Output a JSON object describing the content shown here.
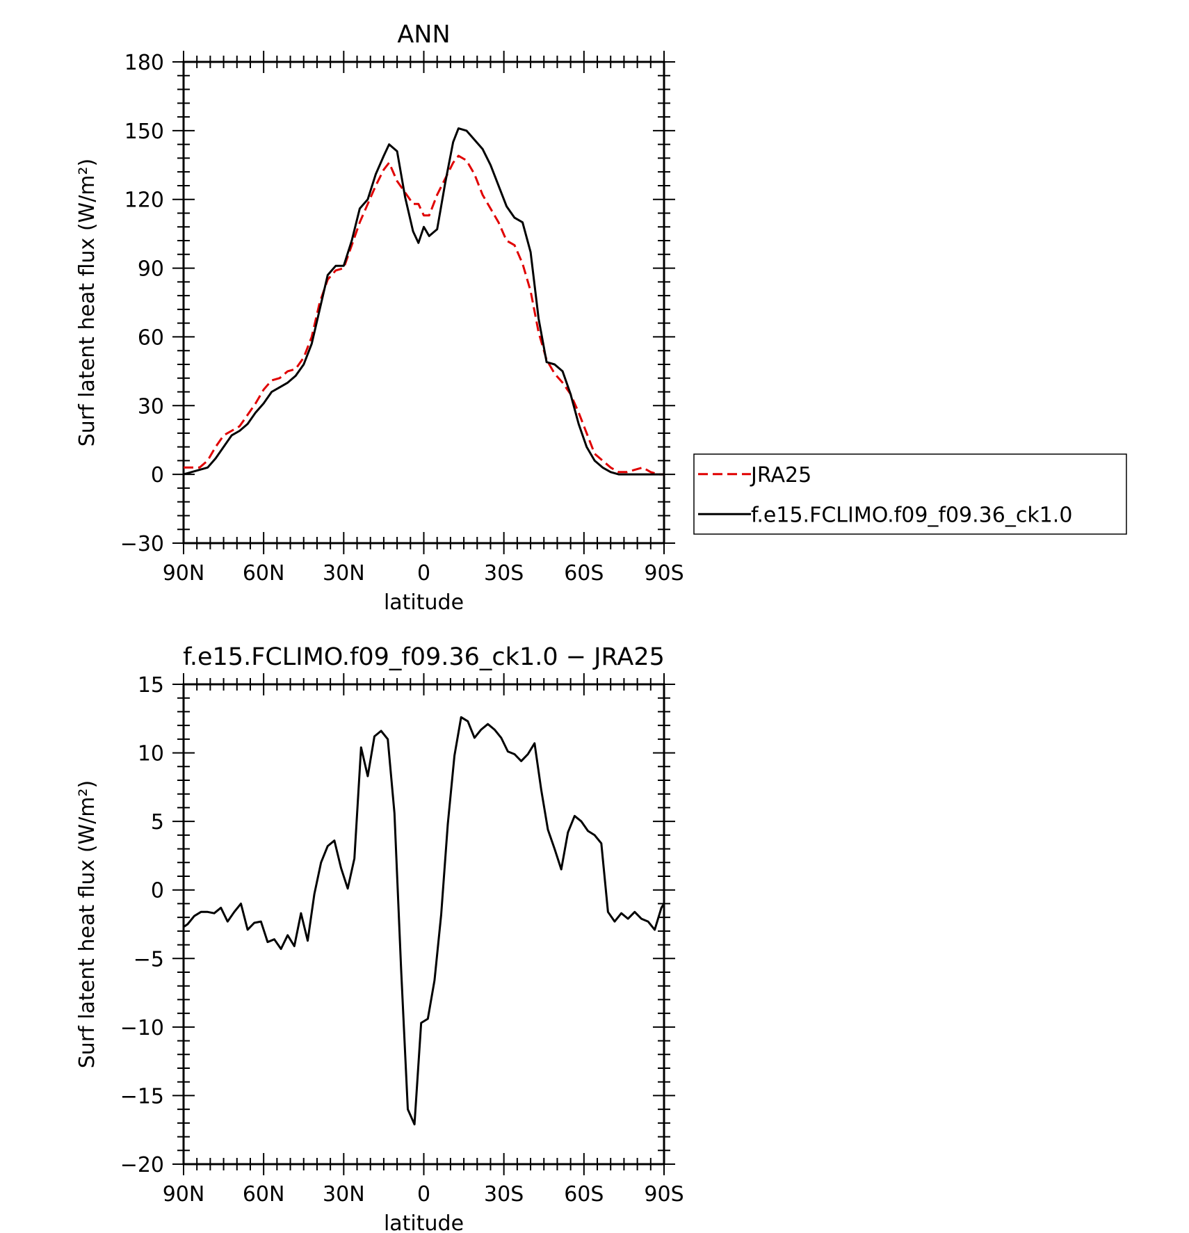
{
  "chart_data": [
    {
      "type": "line",
      "title": "ANN",
      "xlabel": "latitude",
      "ylabel": "Surf latent heat flux (W/m²)",
      "xlim": [
        90,
        -90
      ],
      "ylim": [
        -30,
        180
      ],
      "x_ticks": [
        90,
        60,
        30,
        0,
        -30,
        -60,
        -90
      ],
      "x_tick_labels": [
        "90N",
        "60N",
        "30N",
        "0",
        "30S",
        "60S",
        "90S"
      ],
      "y_ticks": [
        -30,
        0,
        30,
        60,
        90,
        120,
        150,
        180
      ],
      "y_tick_labels": [
        "−30",
        "0",
        "30",
        "60",
        "90",
        "120",
        "150",
        "180"
      ],
      "legend_position": "right",
      "series": [
        {
          "name": "JRA25",
          "color": "#e00000",
          "style": "dashed",
          "x": [
            90,
            87,
            84,
            81,
            78,
            75,
            72,
            69,
            66,
            63,
            60,
            57,
            54,
            51,
            48,
            45,
            42,
            39,
            36,
            33,
            30,
            27,
            24,
            21,
            18,
            15,
            13,
            10,
            7,
            4,
            2,
            0,
            -2,
            -5,
            -8,
            -11,
            -13,
            -16,
            -19,
            -22,
            -25,
            -28,
            -31,
            -34,
            -37,
            -40,
            -43,
            -46,
            -49,
            -52,
            -55,
            -58,
            -61,
            -64,
            -67,
            -70,
            -73,
            -76,
            -79,
            -82,
            -85,
            -88,
            -90
          ],
          "y": [
            3,
            3,
            3,
            6,
            12,
            17,
            19,
            21,
            26,
            31,
            37,
            41,
            42,
            45,
            46,
            51,
            60,
            75,
            85,
            89,
            90,
            100,
            110,
            118,
            126,
            133,
            136,
            128,
            123,
            118,
            118,
            113,
            113,
            122,
            129,
            136,
            139,
            137,
            131,
            122,
            116,
            110,
            102,
            100,
            92,
            80,
            62,
            50,
            44,
            40,
            35,
            27,
            18,
            9,
            6,
            3,
            1,
            1,
            2,
            3,
            1,
            0,
            0
          ]
        },
        {
          "name": "f.e15.FCLIMO.f09_f09.36_ck1.0",
          "color": "#000000",
          "style": "solid",
          "x": [
            90,
            87,
            84,
            81,
            78,
            75,
            72,
            69,
            66,
            63,
            60,
            57,
            54,
            51,
            48,
            45,
            42,
            39,
            36,
            33,
            30,
            27,
            24,
            21,
            18,
            15,
            13,
            10,
            7,
            4,
            2,
            0,
            -2,
            -5,
            -8,
            -11,
            -13,
            -16,
            -19,
            -22,
            -25,
            -28,
            -31,
            -34,
            -37,
            -40,
            -43,
            -46,
            -49,
            -52,
            -55,
            -58,
            -61,
            -64,
            -67,
            -70,
            -73,
            -76,
            -79,
            -82,
            -85,
            -88,
            -90
          ],
          "y": [
            0,
            1,
            2,
            3,
            7,
            12,
            17,
            19,
            22,
            27,
            31,
            36,
            38,
            40,
            43,
            48,
            57,
            72,
            87,
            91,
            91,
            102,
            116,
            120,
            131,
            139,
            144,
            141,
            121,
            106,
            101,
            108,
            104,
            107,
            127,
            145,
            151,
            150,
            146,
            142,
            135,
            126,
            117,
            112,
            110,
            97,
            68,
            49,
            48,
            45,
            35,
            22,
            12,
            6,
            3,
            1,
            0,
            0,
            0,
            0,
            0,
            0,
            0
          ]
        }
      ]
    },
    {
      "type": "line",
      "title": "f.e15.FCLIMO.f09_f09.36_ck1.0 − JRA25",
      "xlabel": "latitude",
      "ylabel": "Surf latent heat flux (W/m²)",
      "xlim": [
        90,
        -90
      ],
      "ylim": [
        -20,
        15
      ],
      "x_ticks": [
        90,
        60,
        30,
        0,
        -30,
        -60,
        -90
      ],
      "x_tick_labels": [
        "90N",
        "60N",
        "30N",
        "0",
        "30S",
        "60S",
        "90S"
      ],
      "y_ticks": [
        -20,
        -15,
        -10,
        -5,
        0,
        5,
        10,
        15
      ],
      "y_tick_labels": [
        "−20",
        "−15",
        "−10",
        "−5",
        "0",
        "5",
        "10",
        "15"
      ],
      "series": [
        {
          "color": "#000000",
          "style": "solid",
          "x": [
            90,
            88.5,
            86,
            83.5,
            81,
            78.5,
            76,
            73.5,
            71,
            68.5,
            66,
            63.5,
            61,
            58.5,
            56,
            53.5,
            51,
            48.5,
            46,
            43.5,
            41,
            38.5,
            36,
            33.5,
            31,
            28.5,
            26,
            23.5,
            21,
            18.5,
            16,
            13.5,
            11,
            8.5,
            6,
            3.5,
            1,
            -1.5,
            -4,
            -6.5,
            -9,
            -11.5,
            -14,
            -16.5,
            -19,
            -21.5,
            -24,
            -26.5,
            -29,
            -31.5,
            -34,
            -36.5,
            -39,
            -41.5,
            -44,
            -46.5,
            -49,
            -51.5,
            -54,
            -56.5,
            -59,
            -61.5,
            -64,
            -66.5,
            -69,
            -71.5,
            -74,
            -76.5,
            -79,
            -81.5,
            -84,
            -86.5,
            -89,
            -90
          ],
          "y": [
            -2.7,
            -2.5,
            -1.9,
            -1.6,
            -1.6,
            -1.7,
            -1.3,
            -2.3,
            -1.6,
            -1,
            -2.9,
            -2.4,
            -2.3,
            -3.8,
            -3.6,
            -4.3,
            -3.3,
            -4.1,
            -1.7,
            -3.7,
            -0.3,
            2,
            3.2,
            3.6,
            1.6,
            0.1,
            2.3,
            10.4,
            8.3,
            11.2,
            11.6,
            11,
            5.6,
            -5.8,
            -16,
            -17.1,
            -9.7,
            -9.4,
            -6.6,
            -1.8,
            4.8,
            9.8,
            12.6,
            12.3,
            11.1,
            11.7,
            12.1,
            11.7,
            11.1,
            10.1,
            9.9,
            9.4,
            9.9,
            10.7,
            7.3,
            4.4,
            3,
            1.5,
            4.2,
            5.4,
            5,
            4.3,
            4,
            3.4,
            -1.6,
            -2.3,
            -1.7,
            -2.1,
            -1.6,
            -2.1,
            -2.3,
            -2.9,
            -1.3,
            -1
          ]
        }
      ]
    }
  ]
}
